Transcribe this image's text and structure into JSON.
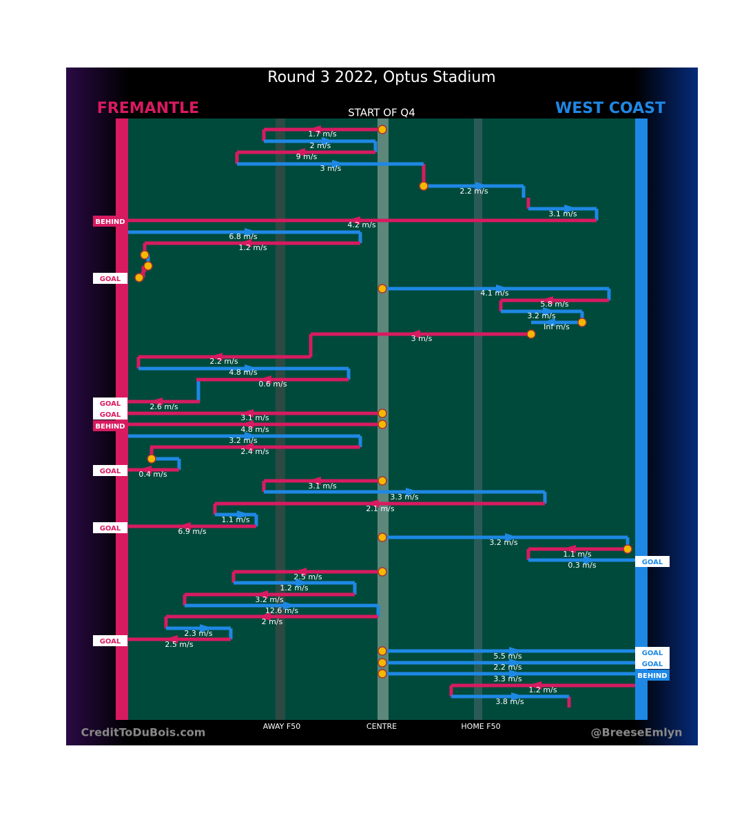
{
  "header": {
    "title": "Round 3 2022, Optus Stadium",
    "period": "START OF Q4"
  },
  "teams": {
    "left": "FREMANTLE",
    "right": "WEST COAST"
  },
  "speeds": [
    "1.7 m/s",
    "2 m/s",
    "9 m/s",
    "3 m/s",
    "2.2 m/s",
    "3.1 m/s",
    "4.2 m/s",
    "6.8 m/s",
    "1.2 m/s",
    "4.1 m/s",
    "5.8 m/s",
    "3.2 m/s",
    "Inf m/s",
    "3 m/s",
    "2.2 m/s",
    "4.8 m/s",
    "0.6 m/s",
    "2.6 m/s",
    "3.1 m/s",
    "4.8 m/s",
    "3.2 m/s",
    "2.4 m/s",
    "0.4 m/s",
    "3.1 m/s",
    "3.3 m/s",
    "2.1 m/s",
    "1.1 m/s",
    "6.9 m/s",
    "3.2 m/s",
    "1.1 m/s",
    "0.3 m/s",
    "2.5 m/s",
    "1.2 m/s",
    "3.2 m/s",
    "12.6 m/s",
    "2 m/s",
    "2.3 m/s",
    "2.5 m/s",
    "5.5 m/s",
    "2.2 m/s",
    "3.3 m/s",
    "1.2 m/s",
    "3.8 m/s"
  ],
  "outcomes": [
    "BEHIND",
    "GOAL",
    "GOAL",
    "GOAL",
    "BEHIND",
    "GOAL",
    "GOAL",
    "GOAL",
    "GOAL",
    "GOAL",
    "GOAL",
    "BEHIND"
  ],
  "axis": [
    "AWAY F50",
    "CENTRE",
    "HOME F50"
  ],
  "credits": [
    "CreditToDuBois.com",
    "@BreeseEmlyn"
  ]
}
